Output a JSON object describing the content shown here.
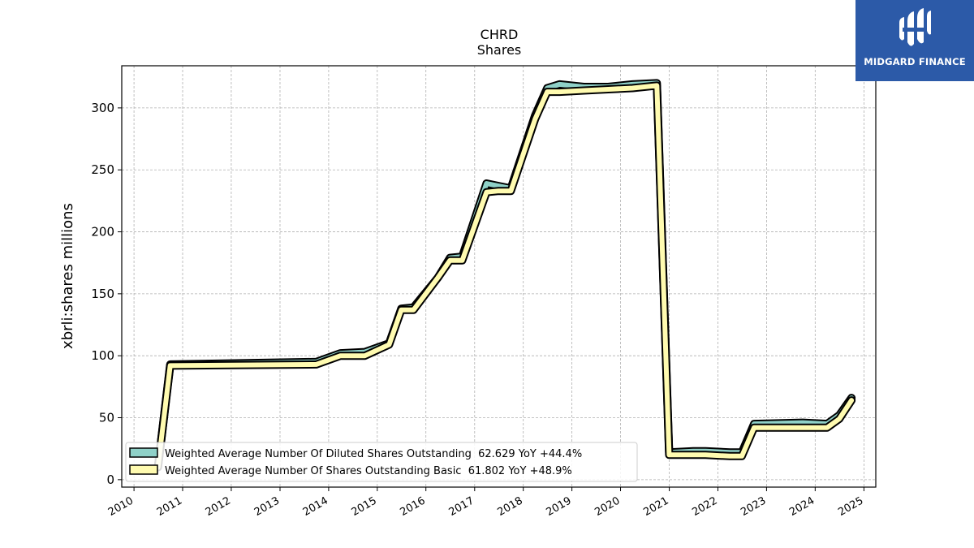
{
  "brand": {
    "name": "MIDGARD FINANCE",
    "color": "#2c5aa8"
  },
  "chart_data": {
    "type": "area",
    "title": "CHRD",
    "subtitle": "Shares",
    "xlabel": "",
    "ylabel": "xbrli:shares millions",
    "xlim": [
      "2009-10-01",
      "2025-03-31"
    ],
    "ylim": [
      -6,
      334
    ],
    "yticks": [
      0,
      50,
      100,
      150,
      200,
      250,
      300
    ],
    "xticks": [
      "2010",
      "2011",
      "2012",
      "2013",
      "2014",
      "2015",
      "2016",
      "2017",
      "2018",
      "2019",
      "2020",
      "2021",
      "2022",
      "2023",
      "2024",
      "2025"
    ],
    "grid": true,
    "legend_position": "lower-left",
    "series": [
      {
        "name": "Weighted Average Number Of Diluted Shares Outstanding  62.629 YoY +44.4%",
        "fill": "#8fd1c8",
        "edge": "#000000",
        "points": [
          [
            "2010-06-30",
            10
          ],
          [
            "2010-09-30",
            93
          ],
          [
            "2013-09-30",
            95
          ],
          [
            "2014-03-31",
            102
          ],
          [
            "2014-09-30",
            103
          ],
          [
            "2015-03-31",
            110
          ],
          [
            "2015-06-30",
            138
          ],
          [
            "2015-09-30",
            139
          ],
          [
            "2016-03-31",
            163
          ],
          [
            "2016-06-30",
            179
          ],
          [
            "2016-09-30",
            180
          ],
          [
            "2017-03-31",
            239
          ],
          [
            "2017-06-30",
            237
          ],
          [
            "2017-09-30",
            235
          ],
          [
            "2018-03-31",
            294
          ],
          [
            "2018-06-30",
            316
          ],
          [
            "2018-09-30",
            319
          ],
          [
            "2019-03-31",
            317
          ],
          [
            "2019-09-30",
            317
          ],
          [
            "2020-03-31",
            319
          ],
          [
            "2020-09-30",
            320
          ],
          [
            "2020-12-31",
            22
          ],
          [
            "2021-06-30",
            23
          ],
          [
            "2021-09-30",
            23
          ],
          [
            "2022-03-31",
            22
          ],
          [
            "2022-06-30",
            22
          ],
          [
            "2022-09-30",
            45
          ],
          [
            "2023-09-30",
            46
          ],
          [
            "2024-03-31",
            45
          ],
          [
            "2024-06-30",
            52
          ],
          [
            "2024-09-30",
            66
          ]
        ]
      },
      {
        "name": "Weighted Average Number Of Shares Outstanding Basic  61.802 YoY +48.9%",
        "fill": "#fffbb0",
        "edge": "#000000",
        "points": [
          [
            "2010-06-30",
            10
          ],
          [
            "2010-09-30",
            92
          ],
          [
            "2013-09-30",
            93
          ],
          [
            "2014-03-31",
            100
          ],
          [
            "2014-09-30",
            100
          ],
          [
            "2015-03-31",
            109
          ],
          [
            "2015-06-30",
            137
          ],
          [
            "2015-09-30",
            137
          ],
          [
            "2016-03-31",
            163
          ],
          [
            "2016-06-30",
            177
          ],
          [
            "2016-09-30",
            177
          ],
          [
            "2017-03-31",
            232
          ],
          [
            "2017-06-30",
            233
          ],
          [
            "2017-09-30",
            233
          ],
          [
            "2018-03-31",
            291
          ],
          [
            "2018-06-30",
            313
          ],
          [
            "2018-09-30",
            313
          ],
          [
            "2019-03-31",
            314
          ],
          [
            "2019-09-30",
            315
          ],
          [
            "2020-03-31",
            316
          ],
          [
            "2020-09-30",
            318
          ],
          [
            "2020-12-31",
            20
          ],
          [
            "2021-06-30",
            20
          ],
          [
            "2021-09-30",
            20
          ],
          [
            "2022-03-31",
            19
          ],
          [
            "2022-06-30",
            19
          ],
          [
            "2022-09-30",
            42
          ],
          [
            "2023-09-30",
            42
          ],
          [
            "2024-03-31",
            42
          ],
          [
            "2024-06-30",
            49
          ],
          [
            "2024-09-30",
            64
          ]
        ]
      }
    ]
  }
}
